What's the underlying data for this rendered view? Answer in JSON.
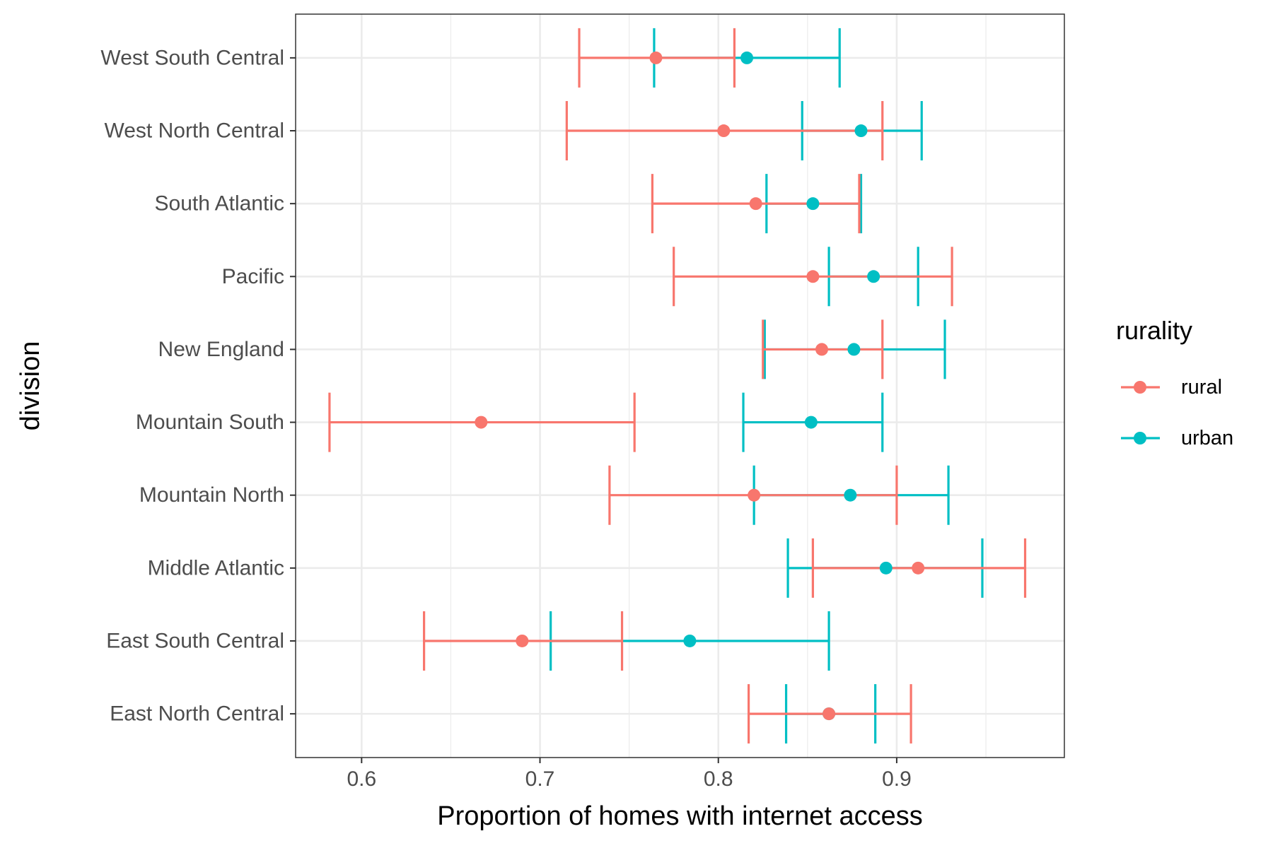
{
  "chart_data": {
    "type": "errorbar",
    "xlabel": "Proportion of homes with internet access",
    "ylabel": "division",
    "xlim": [
      0.563,
      0.994
    ],
    "x_ticks": [
      0.6,
      0.7,
      0.8,
      0.9
    ],
    "x_tick_labels": [
      "0.6",
      "0.7",
      "0.8",
      "0.9"
    ],
    "grid": true,
    "categories": [
      "East North Central",
      "East South Central",
      "Middle Atlantic",
      "Mountain North",
      "Mountain South",
      "New England",
      "Pacific",
      "South Atlantic",
      "West North Central",
      "West South Central"
    ],
    "legend": {
      "title": "rurality",
      "position": "right"
    },
    "series": [
      {
        "name": "rural",
        "color": "#F8766D",
        "points": [
          {
            "category": "East North Central",
            "estimate": 0.862,
            "low": 0.817,
            "high": 0.908
          },
          {
            "category": "East South Central",
            "estimate": 0.69,
            "low": 0.635,
            "high": 0.746
          },
          {
            "category": "Middle Atlantic",
            "estimate": 0.912,
            "low": 0.853,
            "high": 0.972
          },
          {
            "category": "Mountain North",
            "estimate": 0.82,
            "low": 0.739,
            "high": 0.9
          },
          {
            "category": "Mountain South",
            "estimate": 0.667,
            "low": 0.582,
            "high": 0.753
          },
          {
            "category": "New England",
            "estimate": 0.858,
            "low": 0.825,
            "high": 0.892
          },
          {
            "category": "Pacific",
            "estimate": 0.853,
            "low": 0.775,
            "high": 0.931
          },
          {
            "category": "South Atlantic",
            "estimate": 0.821,
            "low": 0.763,
            "high": 0.879
          },
          {
            "category": "West North Central",
            "estimate": 0.803,
            "low": 0.715,
            "high": 0.892
          },
          {
            "category": "West South Central",
            "estimate": 0.765,
            "low": 0.722,
            "high": 0.809
          }
        ]
      },
      {
        "name": "urban",
        "color": "#00BFC4",
        "points": [
          {
            "category": "East North Central",
            "estimate": 0.862,
            "low": 0.838,
            "high": 0.888
          },
          {
            "category": "East South Central",
            "estimate": 0.784,
            "low": 0.706,
            "high": 0.862
          },
          {
            "category": "Middle Atlantic",
            "estimate": 0.894,
            "low": 0.839,
            "high": 0.948
          },
          {
            "category": "Mountain North",
            "estimate": 0.874,
            "low": 0.82,
            "high": 0.929
          },
          {
            "category": "Mountain South",
            "estimate": 0.852,
            "low": 0.814,
            "high": 0.892
          },
          {
            "category": "New England",
            "estimate": 0.876,
            "low": 0.826,
            "high": 0.927
          },
          {
            "category": "Pacific",
            "estimate": 0.887,
            "low": 0.862,
            "high": 0.912
          },
          {
            "category": "South Atlantic",
            "estimate": 0.853,
            "low": 0.827,
            "high": 0.88
          },
          {
            "category": "West North Central",
            "estimate": 0.88,
            "low": 0.847,
            "high": 0.914
          },
          {
            "category": "West South Central",
            "estimate": 0.816,
            "low": 0.764,
            "high": 0.868
          }
        ]
      }
    ]
  }
}
